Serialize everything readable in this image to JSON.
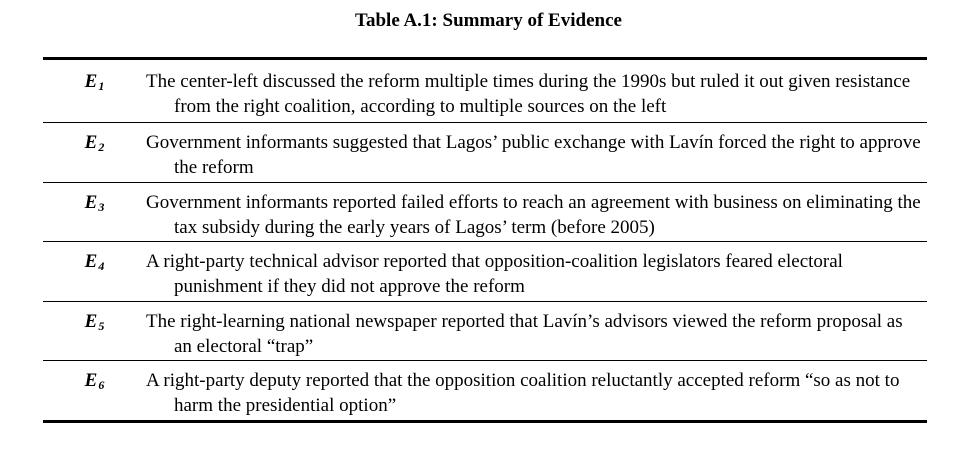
{
  "title": "Table A.1: Summary of Evidence",
  "rows": [
    {
      "label": "E",
      "subscript": "1",
      "description": "The center-left discussed the reform multiple times during the 1990s but ruled it out given resistance from the right coalition, according to multiple sources on the left"
    },
    {
      "label": "E",
      "subscript": "2",
      "description": "Government informants suggested that Lagos’ public exchange with Lavín forced the right to approve the reform"
    },
    {
      "label": "E",
      "subscript": "3",
      "description": "Government informants reported failed efforts to reach an agreement with business on eliminating the tax subsidy during the early years of Lagos’ term (before 2005)"
    },
    {
      "label": "E",
      "subscript": "4",
      "description": "A right-party technical advisor reported that opposition-coalition legislators feared electoral punishment if they did not approve the reform"
    },
    {
      "label": "E",
      "subscript": "5",
      "description": "The right-learning national newspaper reported that Lavín’s advisors viewed the reform proposal as an electoral “trap”"
    },
    {
      "label": "E",
      "subscript": "6",
      "description": "A right-party deputy reported that the opposition coalition reluctantly accepted reform “so as not to harm the presidential option”"
    }
  ]
}
